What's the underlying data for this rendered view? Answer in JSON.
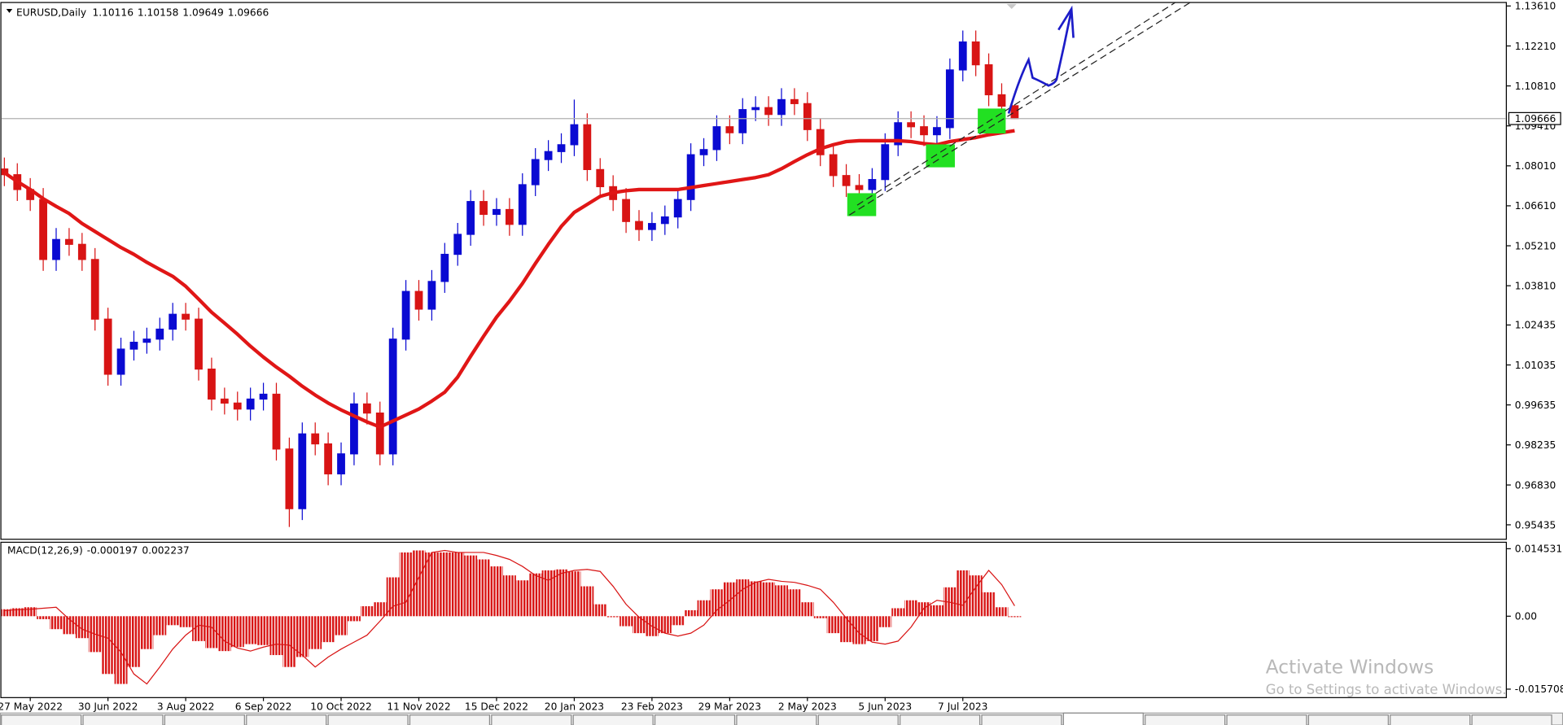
{
  "chart_data": [
    {
      "type": "candlestick",
      "title": "EURUSD,Daily",
      "categories": [
        null,
        null,
        "27 May 2022",
        null,
        null,
        null,
        null,
        null,
        "30 Jun 2022",
        null,
        null,
        null,
        null,
        null,
        "3 Aug 2022",
        null,
        null,
        null,
        null,
        null,
        "6 Sep 2022",
        null,
        null,
        null,
        null,
        null,
        "10 Oct 2022",
        null,
        null,
        null,
        null,
        null,
        "11 Nov 2022",
        null,
        null,
        null,
        null,
        null,
        "15 Dec 2022",
        null,
        null,
        null,
        null,
        null,
        "20 Jan 2023",
        null,
        null,
        null,
        null,
        null,
        "23 Feb 2023",
        null,
        null,
        null,
        null,
        null,
        "29 Mar 2023",
        null,
        null,
        null,
        null,
        null,
        "2 May 2023",
        null,
        null,
        null,
        null,
        null,
        "5 Jun 2023",
        null,
        null,
        null,
        null,
        null,
        "7 Jul 2023",
        null,
        null,
        null,
        null
      ],
      "open": [
        1.079,
        1.077,
        1.0718,
        1.0683,
        1.0473,
        1.0543,
        1.0526,
        1.0473,
        1.0264,
        1.0071,
        1.0159,
        1.0183,
        1.0194,
        1.0229,
        1.0281,
        1.0264,
        1.0089,
        0.9984,
        0.997,
        0.9949,
        0.9984,
        1.0001,
        0.9809,
        0.96,
        0.9862,
        0.9827,
        0.9722,
        0.9792,
        0.9967,
        0.9935,
        0.9792,
        1.0194,
        1.0361,
        1.0299,
        1.0396,
        1.0491,
        1.0561,
        1.0676,
        1.0631,
        1.0648,
        1.0596,
        1.0735,
        1.0823,
        1.0851,
        1.0875,
        1.0945,
        1.0788,
        1.0728,
        1.0683,
        1.0606,
        1.0578,
        1.0599,
        1.0622,
        1.0683,
        1.084,
        1.0858,
        1.0938,
        1.0917,
        1.0998,
        1.1005,
        1.0981,
        1.1033,
        1.1019,
        1.0928,
        1.084,
        1.0767,
        1.0732,
        1.0718,
        1.0753,
        1.0875,
        1.0952,
        1.0938,
        1.091,
        1.0935,
        1.1137,
        1.1235,
        1.1155,
        1.105,
        1.10116
      ],
      "high": [
        1.083,
        1.081,
        1.0758,
        1.0723,
        1.0583,
        1.0583,
        1.0566,
        1.0513,
        1.0304,
        1.0199,
        1.0223,
        1.0234,
        1.0269,
        1.0321,
        1.0321,
        1.0304,
        1.0129,
        1.0024,
        1.001,
        1.0024,
        1.0041,
        1.0041,
        0.9849,
        0.9902,
        0.9902,
        0.9867,
        0.9832,
        1.0007,
        1.0007,
        0.9975,
        1.0234,
        1.0401,
        1.0401,
        1.0436,
        1.0531,
        1.0601,
        1.0716,
        1.0716,
        1.0688,
        1.0688,
        1.0775,
        1.0863,
        1.0891,
        1.0915,
        1.1033,
        1.0985,
        1.0828,
        1.0768,
        1.0723,
        1.0646,
        1.0639,
        1.0662,
        1.0723,
        1.088,
        1.0898,
        1.0978,
        1.0978,
        1.1038,
        1.1045,
        1.1045,
        1.1073,
        1.1073,
        1.1059,
        1.0968,
        1.088,
        1.0807,
        1.0772,
        1.0793,
        1.0915,
        1.0992,
        1.0992,
        1.0978,
        1.0975,
        1.1177,
        1.1275,
        1.1275,
        1.1195,
        1.109,
        1.10158
      ],
      "low": [
        1.073,
        1.0678,
        1.0643,
        1.0433,
        1.0433,
        1.0486,
        1.0433,
        1.0224,
        1.0031,
        1.0031,
        1.0119,
        1.0143,
        1.0154,
        1.0189,
        1.0224,
        1.0049,
        0.9944,
        0.993,
        0.9909,
        0.9909,
        0.9944,
        0.9769,
        0.9536,
        0.956,
        0.9787,
        0.9682,
        0.9682,
        0.9752,
        0.9895,
        0.9752,
        0.9752,
        1.0154,
        1.0259,
        1.0259,
        1.0356,
        1.0451,
        1.0521,
        1.0591,
        1.0591,
        1.0556,
        1.0556,
        1.0695,
        1.0783,
        1.0811,
        1.0835,
        1.0748,
        1.0688,
        1.0643,
        1.0566,
        1.0538,
        1.0538,
        1.0559,
        1.0582,
        1.0643,
        1.08,
        1.0818,
        1.0877,
        1.0877,
        1.0958,
        1.0941,
        1.0941,
        1.0979,
        1.0888,
        1.08,
        1.0727,
        1.0692,
        1.0678,
        1.0678,
        1.0713,
        1.0835,
        1.0898,
        1.087,
        1.087,
        1.0895,
        1.1097,
        1.1115,
        1.101,
        1.097,
        1.09649
      ],
      "close": [
        1.077,
        1.0718,
        1.0683,
        1.0473,
        1.0543,
        1.0526,
        1.0473,
        1.0264,
        1.0071,
        1.0159,
        1.0183,
        1.0194,
        1.0229,
        1.0281,
        1.0264,
        1.0089,
        0.9984,
        0.997,
        0.9949,
        0.9984,
        1.0001,
        0.9809,
        0.96,
        0.9862,
        0.9827,
        0.9722,
        0.9792,
        0.9967,
        0.9935,
        0.9792,
        1.0194,
        1.0361,
        1.0299,
        1.0396,
        1.0491,
        1.0561,
        1.0676,
        1.0631,
        1.0648,
        1.0596,
        1.0735,
        1.0823,
        1.0851,
        1.0875,
        1.0945,
        1.0788,
        1.0728,
        1.0683,
        1.0606,
        1.0578,
        1.0599,
        1.0622,
        1.0683,
        1.084,
        1.0858,
        1.0938,
        1.0917,
        1.0998,
        1.1005,
        1.0981,
        1.1033,
        1.1019,
        1.0928,
        1.084,
        1.0767,
        1.0732,
        1.0718,
        1.0753,
        1.0875,
        1.0952,
        1.0938,
        1.091,
        1.0935,
        1.1137,
        1.1235,
        1.1155,
        1.105,
        1.101,
        1.09666
      ],
      "ma_values": [
        1.0777,
        1.0746,
        1.0718,
        1.0686,
        1.0659,
        1.0634,
        1.0599,
        1.0571,
        1.0543,
        1.0515,
        1.0491,
        1.0463,
        1.0438,
        1.0414,
        1.0379,
        1.0334,
        1.0288,
        1.025,
        1.0211,
        1.0169,
        1.0131,
        1.0096,
        1.0064,
        1.0029,
        0.9998,
        0.997,
        0.9946,
        0.9925,
        0.9904,
        0.9886,
        0.9907,
        0.9928,
        0.9949,
        0.9977,
        1.0008,
        1.0061,
        1.0134,
        1.0204,
        1.0271,
        1.0327,
        1.0389,
        1.0459,
        1.0526,
        1.0589,
        1.0638,
        1.0666,
        1.0694,
        1.0707,
        1.0714,
        1.0718,
        1.0718,
        1.0718,
        1.0718,
        1.0725,
        1.0732,
        1.0739,
        1.0746,
        1.0753,
        1.076,
        1.077,
        1.0791,
        1.0816,
        1.084,
        1.0861,
        1.0875,
        1.0886,
        1.0889,
        1.0889,
        1.0889,
        1.0889,
        1.0886,
        1.0879,
        1.0875,
        1.0886,
        1.0893,
        1.09,
        1.091,
        1.0917,
        1.0924
      ],
      "up_color": "#0a0ad2",
      "down_color": "#d81414",
      "ma_color": "#e01616",
      "ylim": [
        0.94946,
        1.13715
      ],
      "yticks": [
        {
          "value": 1.1361,
          "label": "1.13610"
        },
        {
          "value": 1.1221,
          "label": "1.12210"
        },
        {
          "value": 1.1081,
          "label": "1.10810"
        },
        {
          "value": 1.0941,
          "label": "1.09410"
        },
        {
          "value": 1.0801,
          "label": "1.08010"
        },
        {
          "value": 1.0661,
          "label": "1.06610"
        },
        {
          "value": 1.0521,
          "label": "1.05210"
        },
        {
          "value": 1.0381,
          "label": "1.03810"
        },
        1.02435,
        1.01035,
        0.99635,
        0.98235,
        {
          "value": 0.9683,
          "label": "0.96830"
        },
        0.95435
      ],
      "grid": false
    },
    {
      "type": "macd",
      "title": "MACD(12,26,9)",
      "values": [
        0.0015,
        0.00172,
        0.00193,
        -0.00064,
        -0.00279,
        -0.00386,
        -0.00472,
        -0.00772,
        -0.01244,
        -0.01459,
        -0.01094,
        -0.00708,
        -0.00408,
        -0.00193,
        -0.00236,
        -0.00536,
        -0.00686,
        -0.00751,
        -0.00665,
        -0.00601,
        -0.00622,
        -0.00837,
        -0.01094,
        -0.00879,
        -0.00708,
        -0.00558,
        -0.00408,
        -0.00107,
        0.00215,
        0.003,
        0.00837,
        0.01373,
        0.01416,
        0.01373,
        0.01373,
        0.01373,
        0.01308,
        0.01223,
        0.01073,
        0.00879,
        0.00772,
        0.00922,
        0.00987,
        0.01008,
        0.00965,
        0.00644,
        0.00257,
        -0.00021,
        -0.00215,
        -0.00365,
        -0.00429,
        -0.00365,
        -0.00193,
        0.00129,
        0.00343,
        0.00579,
        0.00729,
        0.00794,
        0.00751,
        0.00729,
        0.00665,
        0.00579,
        0.003,
        -0.00043,
        -0.00365,
        -0.00558,
        -0.00601,
        -0.00536,
        -0.00236,
        0.00172,
        0.00343,
        0.003,
        0.00236,
        0.00622,
        0.00987,
        0.00879,
        0.00515,
        0.00193,
        -0.000197
      ],
      "signal": [
        0.0012,
        0.0014,
        0.0015,
        0.00172,
        0.00193,
        -0.00064,
        -0.00279,
        -0.00386,
        -0.00472,
        -0.00772,
        -0.01244,
        -0.01459,
        -0.01094,
        -0.00708,
        -0.00408,
        -0.00193,
        -0.00236,
        -0.00536,
        -0.00686,
        -0.00751,
        -0.00665,
        -0.00601,
        -0.00622,
        -0.00837,
        -0.01094,
        -0.00879,
        -0.00708,
        -0.00558,
        -0.00408,
        -0.00107,
        0.00215,
        0.003,
        0.00837,
        0.01373,
        0.01416,
        0.01373,
        0.01373,
        0.01373,
        0.01308,
        0.01223,
        0.01073,
        0.00879,
        0.00772,
        0.00922,
        0.00987,
        0.01008,
        0.00965,
        0.00644,
        0.00257,
        -0.00021,
        -0.00215,
        -0.00365,
        -0.00429,
        -0.00365,
        -0.00193,
        0.00129,
        0.00343,
        0.00579,
        0.00729,
        0.00794,
        0.00751,
        0.00729,
        0.00665,
        0.00579,
        0.003,
        -0.00043,
        -0.00365,
        -0.00558,
        -0.00601,
        -0.00536,
        -0.00236,
        0.00172,
        0.00343,
        0.003,
        0.00236,
        0.00622,
        0.00987,
        0.0068,
        0.002237
      ],
      "color": "#d81414",
      "signal_color": "#d81414",
      "ylim": [
        -0.017424,
        0.015818
      ],
      "yticks": [
        0.014531,
        {
          "value": 0,
          "label": "0.00"
        },
        -0.015708
      ]
    }
  ],
  "watermark": {
    "title": "Activate Windows",
    "subtitle": "Go to Settings to activate Windows."
  }
}
